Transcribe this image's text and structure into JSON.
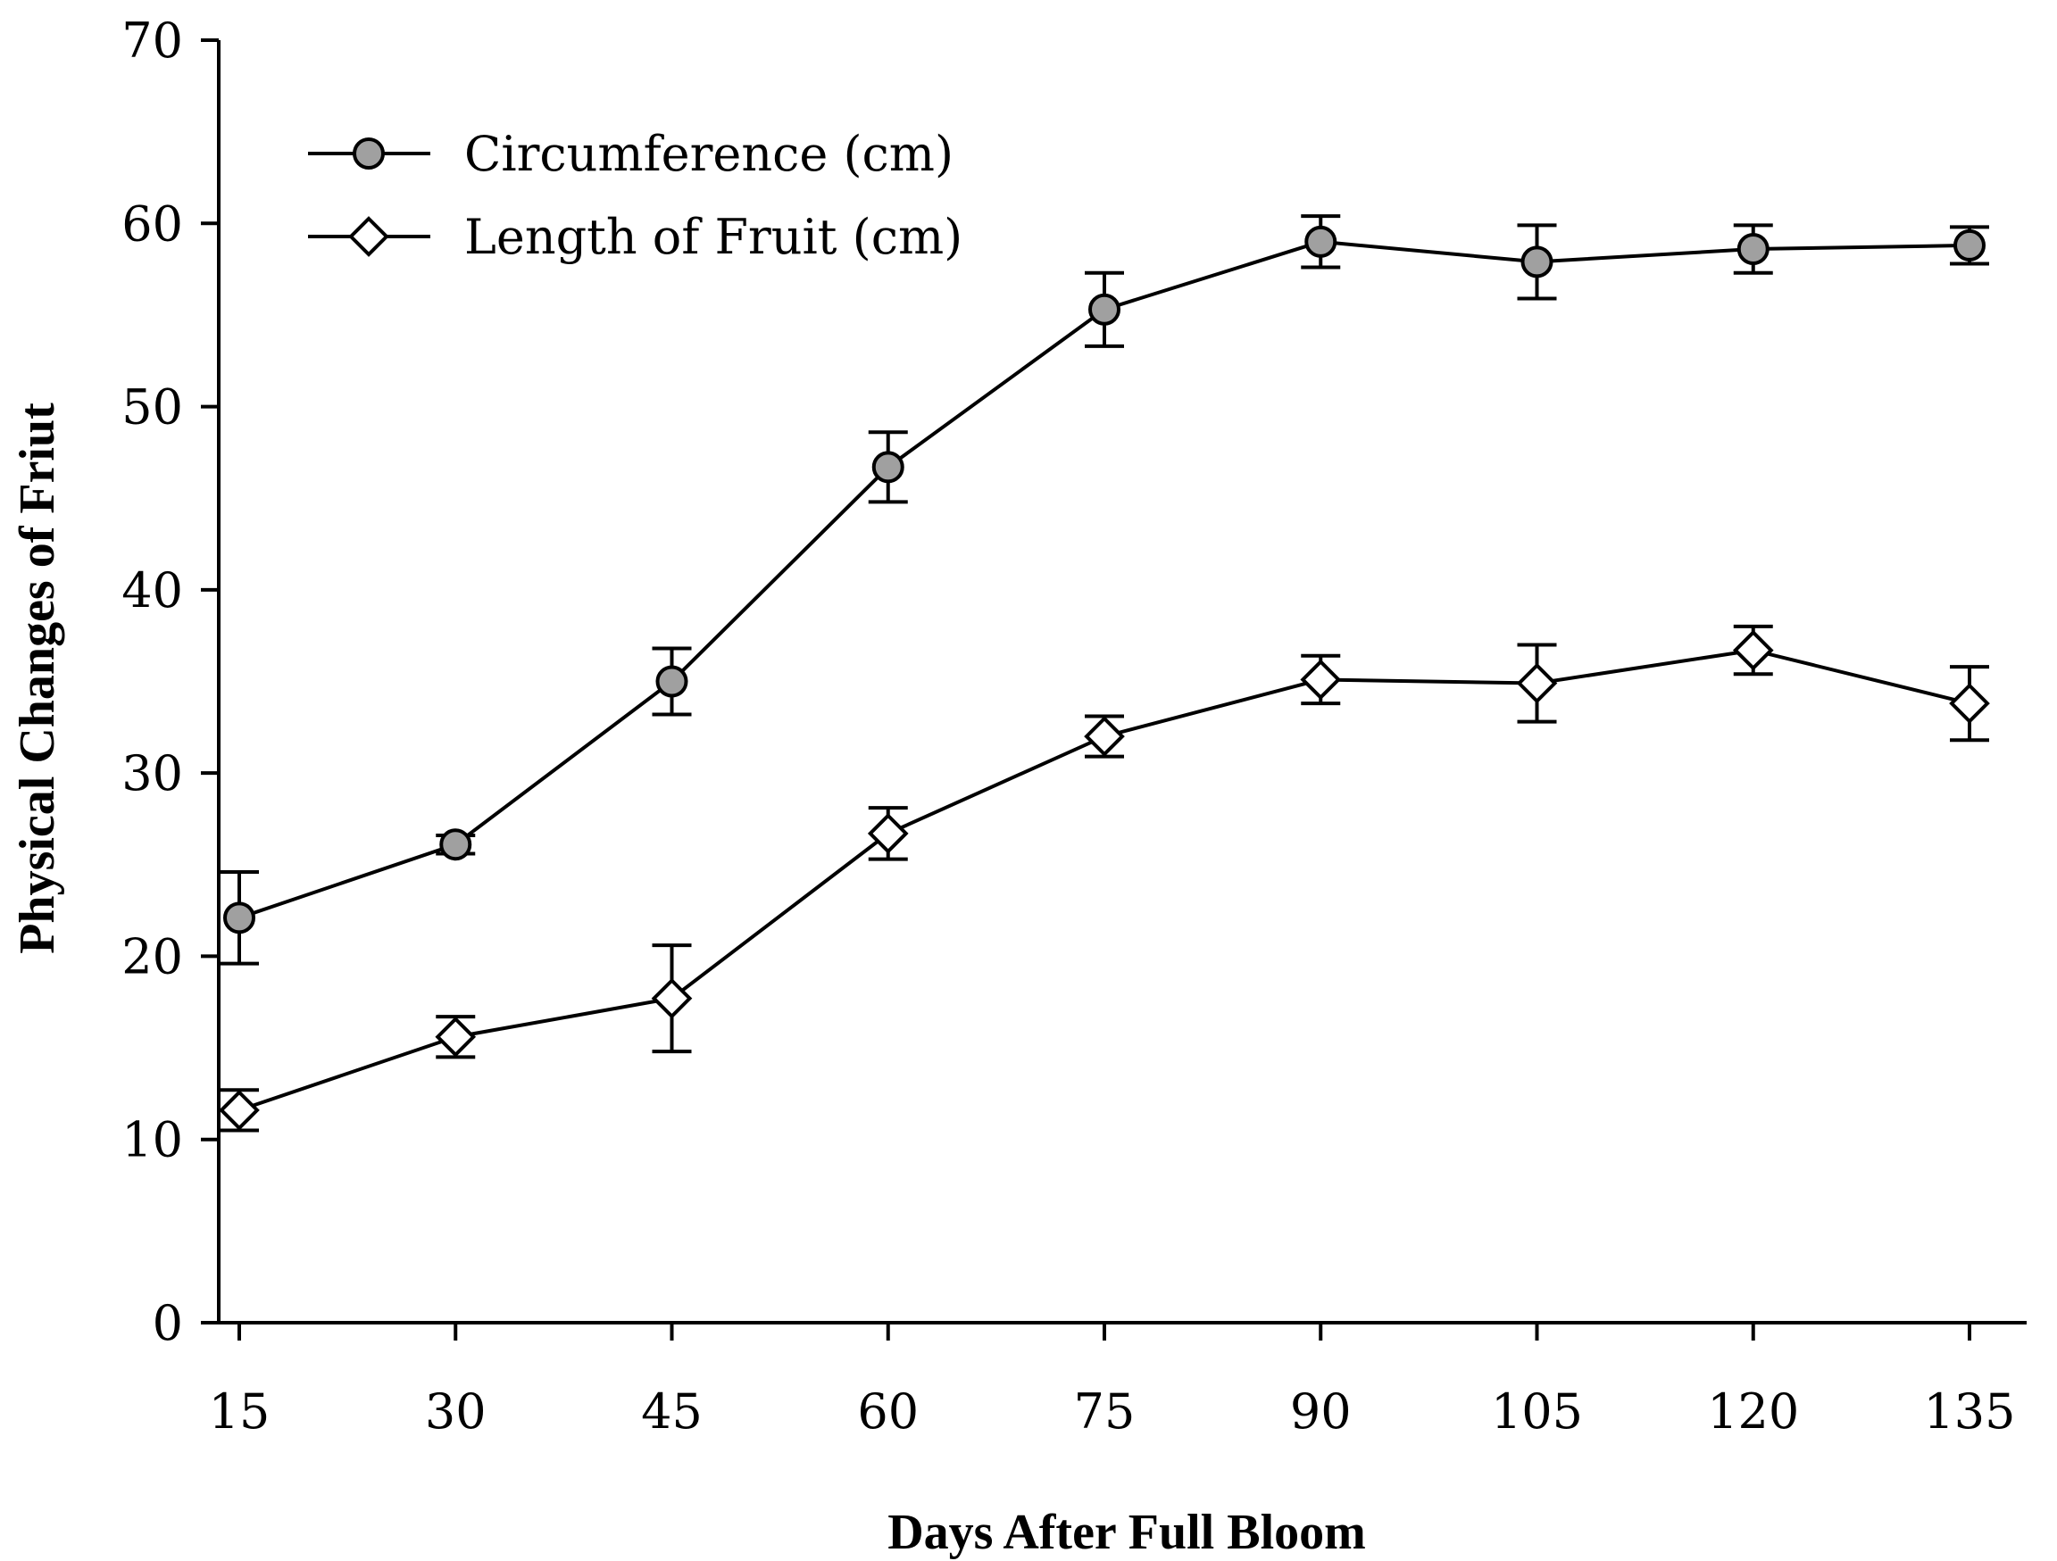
{
  "chart_data": {
    "type": "line",
    "title": "",
    "xlabel": "Days After Full Bloom",
    "ylabel": "Physical Changes of Friut",
    "x": [
      15,
      30,
      45,
      60,
      75,
      90,
      105,
      120,
      135
    ],
    "x_tick_labels": [
      "15",
      "30",
      "45",
      "60",
      "75",
      "90",
      "105",
      "120",
      "135"
    ],
    "ylim": [
      0,
      70
    ],
    "y_ticks": [
      0,
      10,
      20,
      30,
      40,
      50,
      60,
      70
    ],
    "y_tick_labels": [
      "0",
      "10",
      "20",
      "30",
      "40",
      "50",
      "60",
      "70"
    ],
    "grid": false,
    "legend_position": "top-left",
    "series": [
      {
        "name": "Circumference (cm)",
        "marker": "circle",
        "marker_fill": "#a0a0a0",
        "values": [
          22.1,
          26.1,
          35.0,
          46.7,
          55.3,
          59.0,
          57.9,
          58.6,
          58.8
        ],
        "errors": [
          2.5,
          0.5,
          1.8,
          1.9,
          2.0,
          1.4,
          2.0,
          1.3,
          1.0
        ]
      },
      {
        "name": "Length of Fruit (cm)",
        "marker": "diamond",
        "marker_fill": "#ffffff",
        "values": [
          11.6,
          15.6,
          17.7,
          26.7,
          32.0,
          35.1,
          34.9,
          36.7,
          33.8
        ],
        "errors": [
          1.1,
          1.1,
          2.9,
          1.4,
          1.1,
          1.3,
          2.1,
          1.3,
          2.0
        ]
      }
    ]
  }
}
